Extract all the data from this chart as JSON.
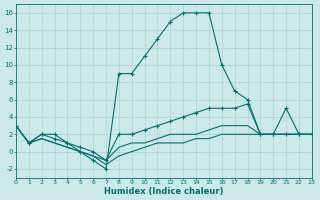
{
  "xlabel": "Humidex (Indice chaleur)",
  "background_color": "#cce8e8",
  "grid_color": "#aad4d4",
  "line_color": "#007070",
  "xlim": [
    0,
    23
  ],
  "ylim": [
    -3,
    17
  ],
  "yticks": [
    -2,
    0,
    2,
    4,
    6,
    8,
    10,
    12,
    14,
    16
  ],
  "xticks": [
    0,
    1,
    2,
    3,
    4,
    5,
    6,
    7,
    8,
    9,
    10,
    11,
    12,
    13,
    14,
    15,
    16,
    17,
    18,
    19,
    20,
    21,
    22,
    23
  ],
  "main_x": [
    0,
    1,
    2,
    3,
    4,
    5,
    6,
    7,
    8,
    9,
    10,
    11,
    12,
    13,
    14,
    15,
    16,
    17,
    18,
    19,
    20,
    21,
    22,
    23
  ],
  "main_y": [
    3,
    1,
    2,
    2,
    1,
    0,
    -1,
    -2,
    9,
    9,
    11,
    13,
    15,
    16,
    16,
    16,
    10,
    7,
    6,
    2,
    2,
    5,
    2,
    2
  ],
  "line2_x": [
    0,
    1,
    2,
    3,
    4,
    5,
    6,
    7,
    8,
    9,
    10,
    11,
    12,
    13,
    14,
    15,
    16,
    17,
    18,
    19,
    20,
    21,
    22,
    23
  ],
  "line2_y": [
    3,
    1,
    2,
    1.5,
    1,
    0.5,
    0,
    -1,
    2,
    2,
    2.5,
    3,
    3.5,
    4,
    4.5,
    5,
    5,
    5,
    5.5,
    2,
    2,
    2,
    2,
    2
  ],
  "line3_x": [
    0,
    1,
    2,
    3,
    4,
    5,
    6,
    7,
    8,
    9,
    10,
    11,
    12,
    13,
    14,
    15,
    16,
    17,
    18,
    19,
    20,
    21,
    22,
    23
  ],
  "line3_y": [
    3,
    1,
    1.5,
    1,
    0.5,
    0,
    -0.5,
    -1,
    0.5,
    1,
    1,
    1.5,
    2,
    2,
    2,
    2.5,
    3,
    3,
    3,
    2,
    2,
    2,
    2,
    2
  ],
  "line4_x": [
    0,
    1,
    2,
    3,
    4,
    5,
    6,
    7,
    8,
    9,
    10,
    11,
    12,
    13,
    14,
    15,
    16,
    17,
    18,
    19,
    20,
    21,
    22,
    23
  ],
  "line4_y": [
    3,
    1,
    1.5,
    1,
    0.5,
    0,
    -0.5,
    -1.5,
    -0.5,
    0,
    0.5,
    1,
    1,
    1,
    1.5,
    1.5,
    2,
    2,
    2,
    2,
    2,
    2,
    2,
    2
  ]
}
